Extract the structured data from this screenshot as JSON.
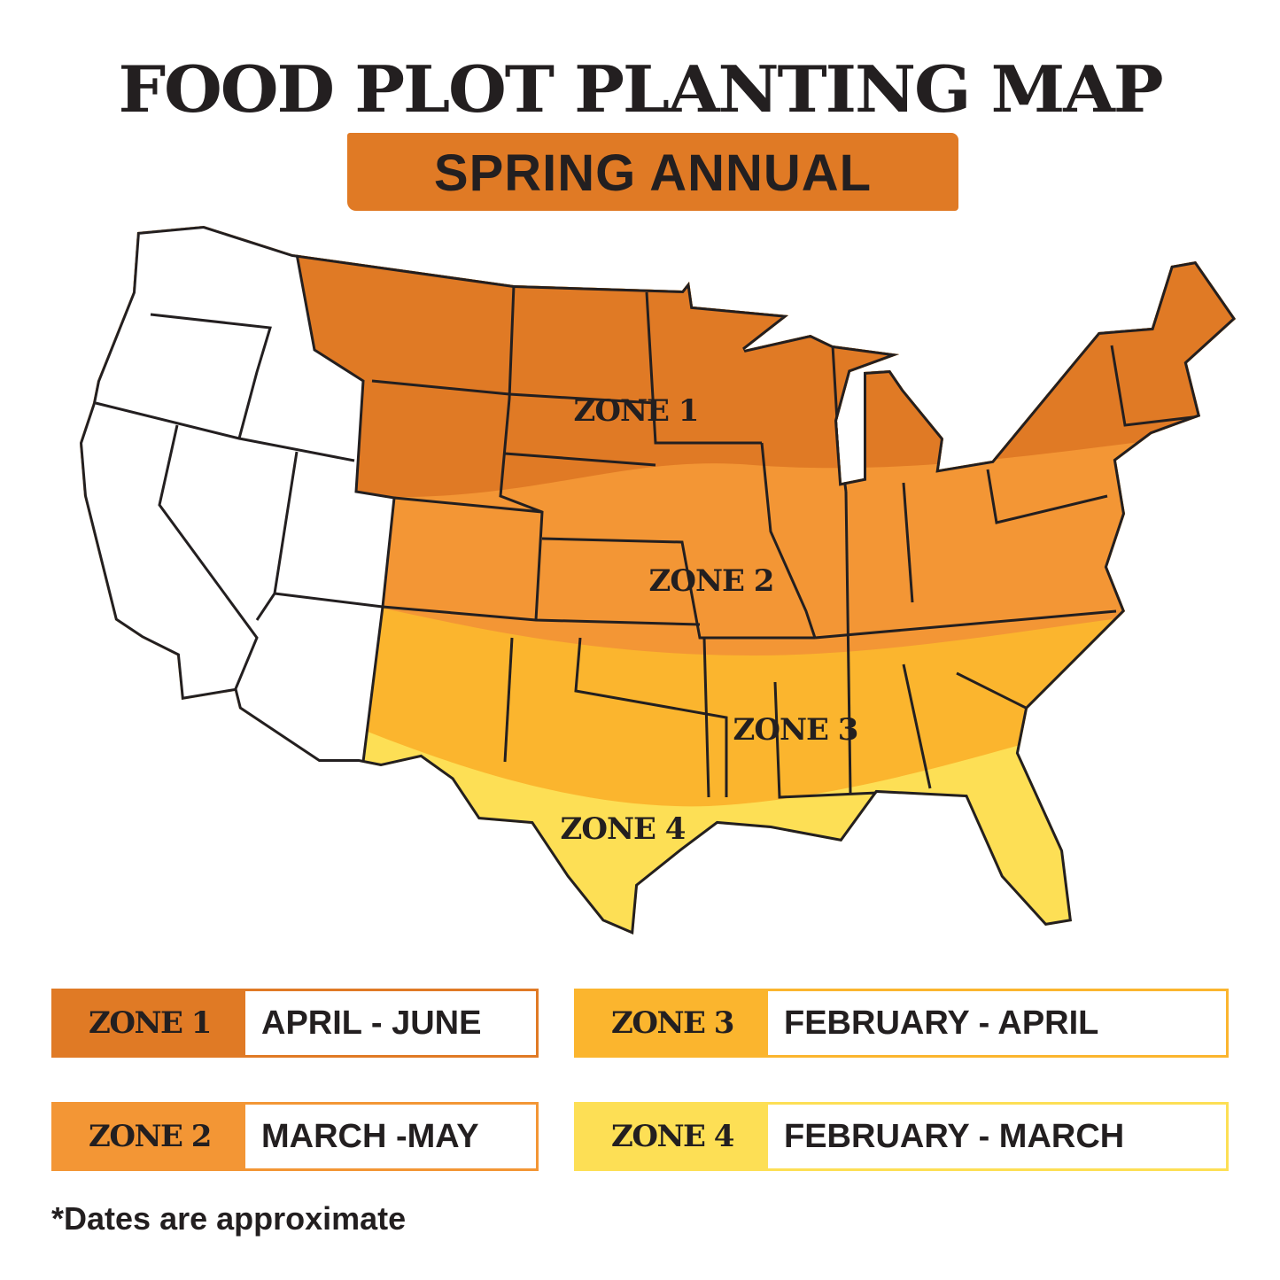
{
  "title": "FOOD PLOT PLANTING MAP",
  "subtitle": "SPRING ANNUAL",
  "zones": [
    {
      "label": "ZONE 1",
      "dates": "APRIL - JUNE",
      "color": "#e07a25"
    },
    {
      "label": "ZONE 2",
      "dates": "MARCH -MAY",
      "color": "#f39635"
    },
    {
      "label": "ZONE 3",
      "dates": "FEBRUARY - APRIL",
      "color": "#fbb52e"
    },
    {
      "label": "ZONE 4",
      "dates": "FEBRUARY - MARCH",
      "color": "#fddf55"
    }
  ],
  "footnote": "*Dates are approximate"
}
